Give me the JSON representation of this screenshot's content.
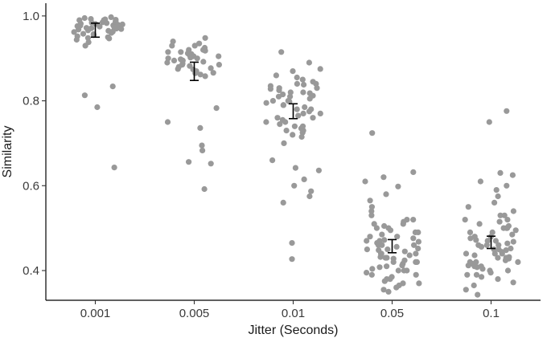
{
  "chart_data": {
    "type": "scatter",
    "xlabel": "Jitter (Seconds)",
    "ylabel": "Similarity",
    "categories": [
      "0.001",
      "0.005",
      "0.01",
      "0.05",
      "0.1"
    ],
    "ylim": [
      0.33,
      1.03
    ],
    "yticks": [
      0.4,
      0.6,
      0.8,
      1.0
    ],
    "ytick_labels": [
      "0.4",
      "0.6",
      "0.8",
      "1.0"
    ],
    "grid": false,
    "legend": "none",
    "colors": {
      "points": "#999999",
      "error_bars": "#000000",
      "axis": "#000000"
    },
    "series": [
      {
        "category": "0.001",
        "mean": 0.967,
        "ci_low": 0.95,
        "ci_high": 0.983,
        "values": [
          0.99,
          0.995,
          0.985,
          0.98,
          0.992,
          0.988,
          0.976,
          0.97,
          0.983,
          0.978,
          0.965,
          0.972,
          0.96,
          0.968,
          0.975,
          0.982,
          0.99,
          0.997,
          0.986,
          0.974,
          0.962,
          0.955,
          0.95,
          0.948,
          0.958,
          0.966,
          0.979,
          0.987,
          0.993,
          0.971,
          0.963,
          0.952,
          0.944,
          0.93,
          0.938,
          0.981,
          0.969,
          0.957,
          0.947,
          0.977,
          0.984,
          0.991,
          0.834,
          0.813,
          0.785,
          0.643
        ]
      },
      {
        "category": "0.005",
        "mean": 0.869,
        "ci_low": 0.848,
        "ci_high": 0.891,
        "values": [
          0.948,
          0.94,
          0.935,
          0.93,
          0.925,
          0.92,
          0.918,
          0.915,
          0.912,
          0.91,
          0.908,
          0.905,
          0.902,
          0.9,
          0.898,
          0.895,
          0.892,
          0.89,
          0.888,
          0.885,
          0.882,
          0.88,
          0.877,
          0.874,
          0.87,
          0.866,
          0.862,
          0.858,
          0.915,
          0.9,
          0.91,
          0.93,
          0.92,
          0.895,
          0.905,
          0.885,
          0.875,
          0.865,
          0.783,
          0.736,
          0.75,
          0.695,
          0.683,
          0.656,
          0.652,
          0.592
        ]
      },
      {
        "category": "0.01",
        "mean": 0.776,
        "ci_low": 0.758,
        "ci_high": 0.793,
        "values": [
          0.915,
          0.89,
          0.875,
          0.87,
          0.86,
          0.855,
          0.85,
          0.845,
          0.84,
          0.838,
          0.835,
          0.83,
          0.828,
          0.825,
          0.82,
          0.818,
          0.815,
          0.812,
          0.81,
          0.805,
          0.8,
          0.798,
          0.795,
          0.79,
          0.785,
          0.78,
          0.775,
          0.77,
          0.765,
          0.76,
          0.755,
          0.75,
          0.745,
          0.74,
          0.735,
          0.73,
          0.725,
          0.72,
          0.715,
          0.84,
          0.82,
          0.8,
          0.78,
          0.76,
          0.74,
          0.81,
          0.79,
          0.77,
          0.75,
          0.73,
          0.83,
          0.7,
          0.66,
          0.642,
          0.636,
          0.615,
          0.6,
          0.587,
          0.575,
          0.56,
          0.465,
          0.427
        ]
      },
      {
        "category": "0.05",
        "mean": 0.457,
        "ci_low": 0.442,
        "ci_high": 0.473,
        "values": [
          0.724,
          0.632,
          0.62,
          0.61,
          0.598,
          0.58,
          0.565,
          0.55,
          0.54,
          0.53,
          0.52,
          0.515,
          0.51,
          0.505,
          0.5,
          0.495,
          0.49,
          0.485,
          0.48,
          0.476,
          0.472,
          0.468,
          0.465,
          0.46,
          0.456,
          0.452,
          0.448,
          0.445,
          0.44,
          0.436,
          0.432,
          0.428,
          0.424,
          0.42,
          0.416,
          0.412,
          0.408,
          0.404,
          0.4,
          0.395,
          0.39,
          0.385,
          0.38,
          0.375,
          0.37,
          0.365,
          0.36,
          0.355,
          0.35,
          0.5,
          0.48,
          0.46,
          0.44,
          0.42,
          0.4,
          0.38,
          0.52,
          0.47,
          0.45,
          0.43,
          0.41,
          0.39,
          0.49,
          0.47,
          0.45,
          0.43,
          0.51,
          0.46,
          0.44,
          0.42,
          0.4,
          0.37
        ]
      },
      {
        "category": "0.1",
        "mean": 0.466,
        "ci_low": 0.452,
        "ci_high": 0.481,
        "values": [
          0.776,
          0.75,
          0.63,
          0.625,
          0.61,
          0.6,
          0.59,
          0.575,
          0.56,
          0.55,
          0.54,
          0.53,
          0.52,
          0.515,
          0.51,
          0.505,
          0.5,
          0.495,
          0.49,
          0.485,
          0.48,
          0.476,
          0.472,
          0.468,
          0.464,
          0.46,
          0.456,
          0.452,
          0.448,
          0.444,
          0.44,
          0.436,
          0.432,
          0.428,
          0.424,
          0.42,
          0.416,
          0.412,
          0.408,
          0.404,
          0.4,
          0.395,
          0.39,
          0.385,
          0.38,
          0.372,
          0.365,
          0.355,
          0.343,
          0.5,
          0.48,
          0.46,
          0.44,
          0.42,
          0.4,
          0.47,
          0.45,
          0.43,
          0.41,
          0.49,
          0.47,
          0.45,
          0.43,
          0.46,
          0.44,
          0.42,
          0.5,
          0.52,
          0.39,
          0.41,
          0.53
        ]
      }
    ]
  }
}
